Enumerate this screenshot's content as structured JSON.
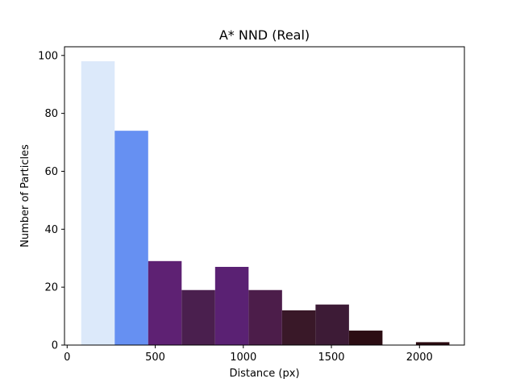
{
  "chart_data": {
    "type": "bar",
    "title": "A* NND (Real)",
    "xlabel": "Distance (px)",
    "ylabel": "Number of Particles",
    "xlim": [
      -15,
      2255
    ],
    "ylim": [
      0,
      103
    ],
    "xticks": [
      0,
      500,
      1000,
      1500,
      2000
    ],
    "yticks": [
      0,
      20,
      40,
      60,
      80,
      100
    ],
    "grid": false,
    "bins": [
      {
        "x0": 80,
        "x1": 270,
        "count": 98,
        "color": "#dce9fa"
      },
      {
        "x0": 270,
        "x1": 460,
        "count": 74,
        "color": "#6690f2"
      },
      {
        "x0": 460,
        "x1": 650,
        "count": 29,
        "color": "#5e2173"
      },
      {
        "x0": 650,
        "x1": 840,
        "count": 19,
        "color": "#4a1f4e"
      },
      {
        "x0": 840,
        "x1": 1030,
        "count": 27,
        "color": "#5a2173"
      },
      {
        "x0": 1030,
        "x1": 1220,
        "count": 19,
        "color": "#4c1d4a"
      },
      {
        "x0": 1220,
        "x1": 1410,
        "count": 12,
        "color": "#391828"
      },
      {
        "x0": 1410,
        "x1": 1600,
        "count": 14,
        "color": "#3d1b36"
      },
      {
        "x0": 1600,
        "x1": 1790,
        "count": 5,
        "color": "#2c0d13"
      },
      {
        "x0": 1790,
        "x1": 1980,
        "count": 0,
        "color": "#2a0a10"
      },
      {
        "x0": 1980,
        "x1": 2170,
        "count": 1,
        "color": "#2a0a10"
      }
    ]
  }
}
